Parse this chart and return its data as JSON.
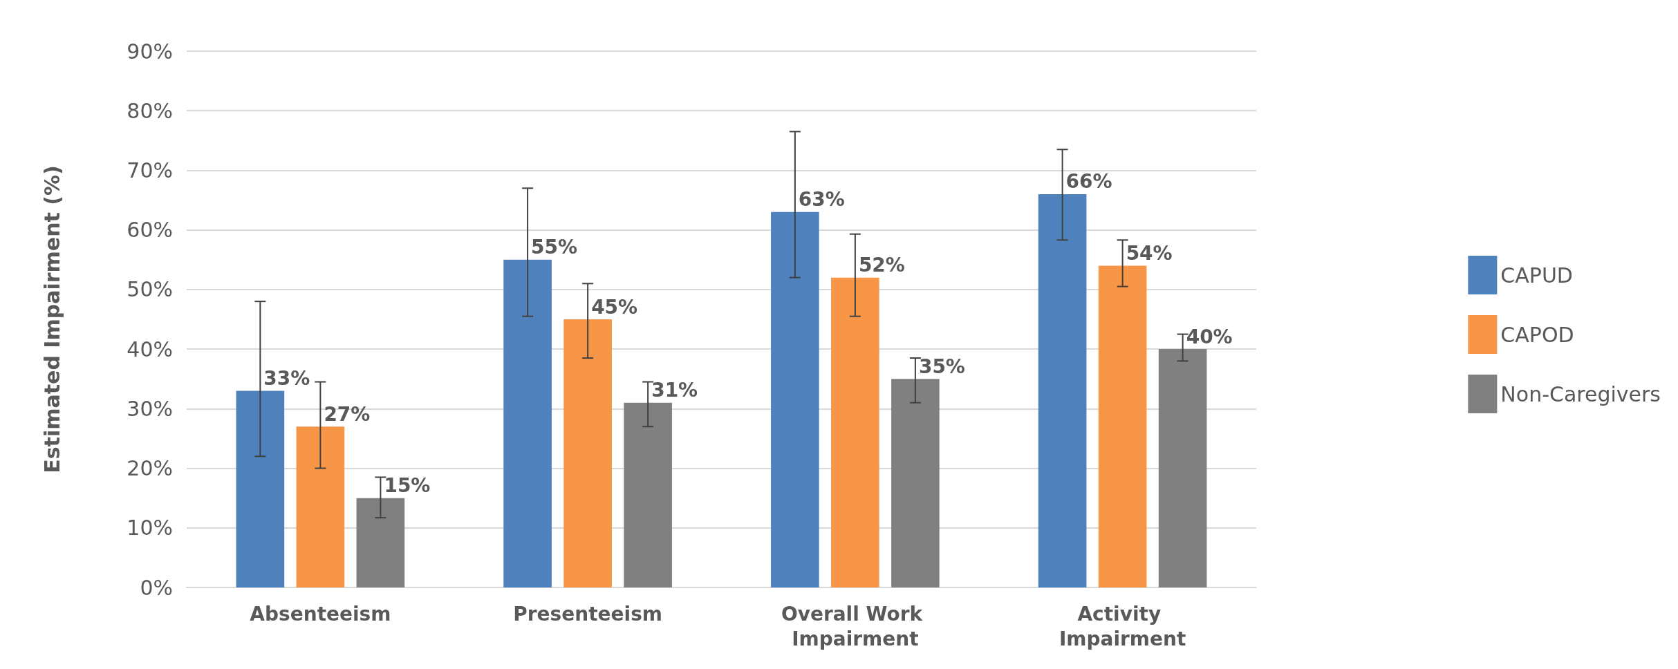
{
  "chart_data": {
    "type": "bar",
    "ylabel": "Estimated Impairment (%)",
    "categories": [
      "Absenteeism",
      "Presenteeism",
      "Overall Work Impairment",
      "Activity Impairment"
    ],
    "series": [
      {
        "name": "CAPUD",
        "color": "#4f81bd",
        "values": [
          33,
          55,
          63,
          66
        ],
        "value_labels": [
          "33%",
          "55%",
          "63%",
          "66%"
        ],
        "errors": [
          [
            22,
            48
          ],
          [
            45.5,
            67
          ],
          [
            52,
            76.5
          ],
          [
            58.3,
            73.5
          ]
        ]
      },
      {
        "name": "CAPOD",
        "color": "#f79646",
        "values": [
          27,
          45,
          52,
          54
        ],
        "value_labels": [
          "27%",
          "45%",
          "52%",
          "54%"
        ],
        "errors": [
          [
            20,
            34.5
          ],
          [
            38.5,
            51
          ],
          [
            45.5,
            59.3
          ],
          [
            50.5,
            58.3
          ]
        ]
      },
      {
        "name": "Non-Caregivers",
        "color": "#808080",
        "values": [
          15,
          31,
          35,
          40
        ],
        "value_labels": [
          "15%",
          "31%",
          "35%",
          "40%"
        ],
        "errors": [
          [
            11.7,
            18.5
          ],
          [
            27,
            34.5
          ],
          [
            31,
            38.5
          ],
          [
            38,
            42.5
          ]
        ]
      }
    ],
    "ylim": [
      0,
      90
    ],
    "yticks": [
      {
        "value": 0,
        "label": "0%"
      },
      {
        "value": 10,
        "label": "10%"
      },
      {
        "value": 20,
        "label": "20%"
      },
      {
        "value": 30,
        "label": "30%"
      },
      {
        "value": 40,
        "label": "40%"
      },
      {
        "value": 50,
        "label": "50%"
      },
      {
        "value": 60,
        "label": "60%"
      },
      {
        "value": 70,
        "label": "70%"
      },
      {
        "value": 80,
        "label": "80%"
      },
      {
        "value": 90,
        "label": "90%"
      }
    ],
    "grid": "y",
    "legend": "right"
  }
}
